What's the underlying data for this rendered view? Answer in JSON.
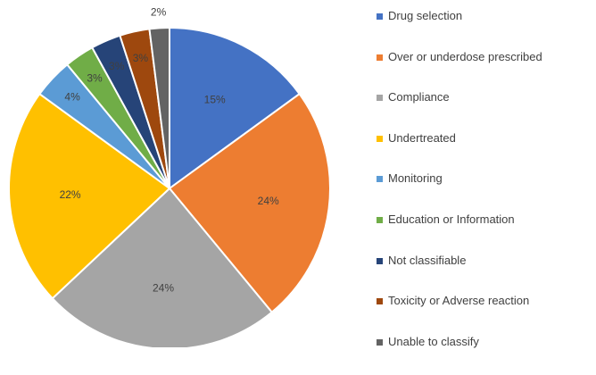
{
  "chart_data": {
    "type": "pie",
    "title": "",
    "categories": [
      "Drug selection",
      "Over or underdose prescribed",
      "Compliance",
      "Undertreated",
      "Monitoring",
      "Education or Information",
      "Not classifiable",
      "Toxicity or Adverse reaction",
      "Unable to classify"
    ],
    "values": [
      15,
      24,
      24,
      22,
      4,
      3,
      3,
      3,
      2
    ],
    "labels": [
      "15%",
      "24%",
      "24%",
      "22%",
      "4%",
      "3%",
      "3%",
      "3%",
      "2%"
    ],
    "colors": [
      "#4472C4",
      "#ED7D31",
      "#A5A5A5",
      "#FFC000",
      "#5B9BD5",
      "#70AD47",
      "#264478",
      "#9E480E",
      "#636363"
    ],
    "legend_position": "right",
    "start_angle_deg": 0,
    "direction": "clockwise"
  }
}
